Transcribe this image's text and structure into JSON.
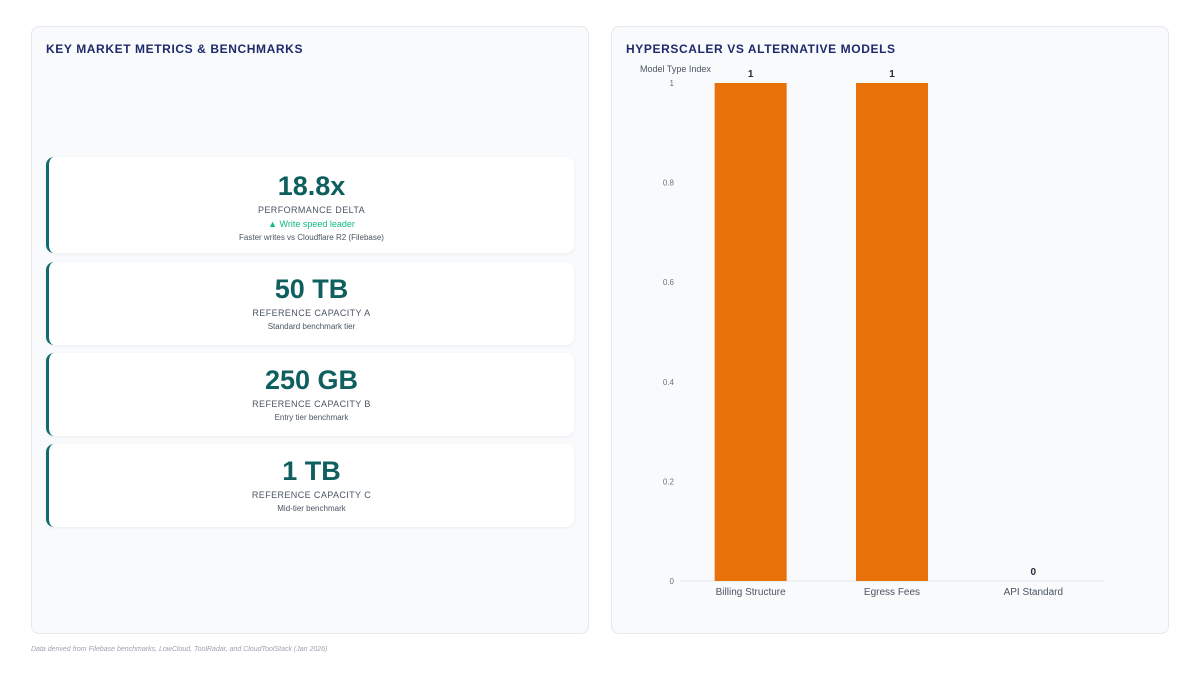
{
  "left_panel": {
    "title": "KEY MARKET METRICS & BENCHMARKS",
    "cards": [
      {
        "value": "18.8x",
        "label": "PERFORMANCE DELTA",
        "delta": "▲ Write speed leader",
        "note": "Faster writes vs Cloudflare R2 (Filebase)"
      },
      {
        "value": "50 TB",
        "label": "REFERENCE CAPACITY A",
        "note": "Standard benchmark tier"
      },
      {
        "value": "250 GB",
        "label": "REFERENCE CAPACITY B",
        "note": "Entry tier benchmark"
      },
      {
        "value": "1 TB",
        "label": "REFERENCE CAPACITY C",
        "note": "Mid-tier benchmark"
      }
    ]
  },
  "right_panel": {
    "title": "HYPERSCALER VS ALTERNATIVE MODELS"
  },
  "chart_data": {
    "type": "bar",
    "title": "",
    "ylabel": "Model Type Index",
    "xlabel": "",
    "categories": [
      "Billing Structure",
      "Egress Fees",
      "API Standard"
    ],
    "values": [
      1,
      1,
      0
    ],
    "data_labels": [
      "1",
      "1",
      "0"
    ],
    "ylim": [
      0,
      1
    ],
    "yticks": [
      "0",
      "0.2",
      "0.4",
      "0.6",
      "0.8",
      "1"
    ],
    "bar_color": "#e8710a",
    "grid": false,
    "legend": "none"
  },
  "footer": {
    "source_note": "Data derived from Filebase benchmarks, LowCloud, ToolRadar, and CloudToolStack (Jan 2026)"
  }
}
